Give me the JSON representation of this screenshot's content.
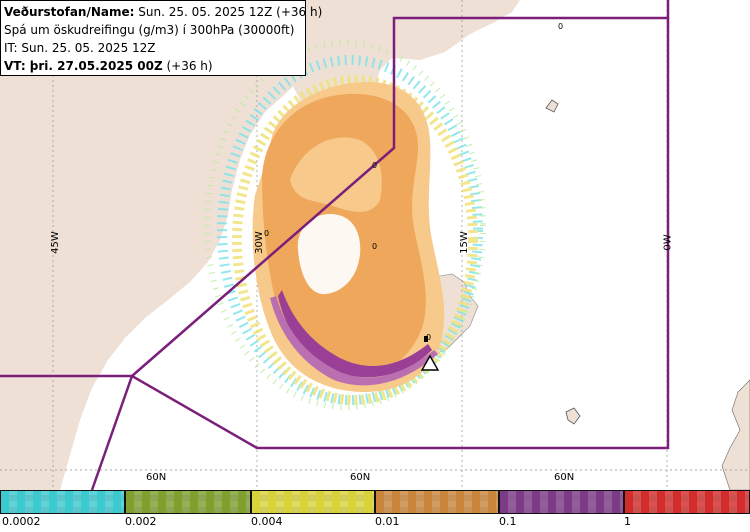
{
  "header": {
    "line1_bold": "Veðurstofan/Name:",
    "line1_rest": " Sun. 25. 05. 2025 12Z (+36 h)",
    "line2": "Spá um öskudreifingu (g/m3) í 300hPa (30000ft)",
    "line3": "IT: Sun. 25. 05. 2025 12Z",
    "line4_bold": "VT:",
    "line4_bold2": " þri. 27.05.2025 00Z",
    "line4_rest": " (+36 h)"
  },
  "map": {
    "lon_labels": [
      "45W",
      "30W",
      "15W",
      "0W"
    ],
    "lat_labels": [
      "60N",
      "60N",
      "60N"
    ],
    "zero_markers": [
      "0",
      "0",
      "0",
      "0",
      "0"
    ],
    "colors": {
      "land": "#efe0d6",
      "sea": "#ffffff",
      "boundary": "#7b1f7b",
      "ash_light": "#f7c98b",
      "ash_orange": "#efa85b",
      "ash_purple": "#9a3f96",
      "speckle_cyan": "#7fe4e9",
      "speckle_yellow": "#efe27a"
    }
  },
  "legend": {
    "tick_labels": [
      "0.0002",
      "0.002",
      "0.004",
      "0.01",
      "0.1",
      "1"
    ],
    "colors": [
      "#3cc9cf",
      "#7f9f2f",
      "#d9d33a",
      "#c9853a",
      "#7c3b86",
      "#d22c2c"
    ]
  }
}
